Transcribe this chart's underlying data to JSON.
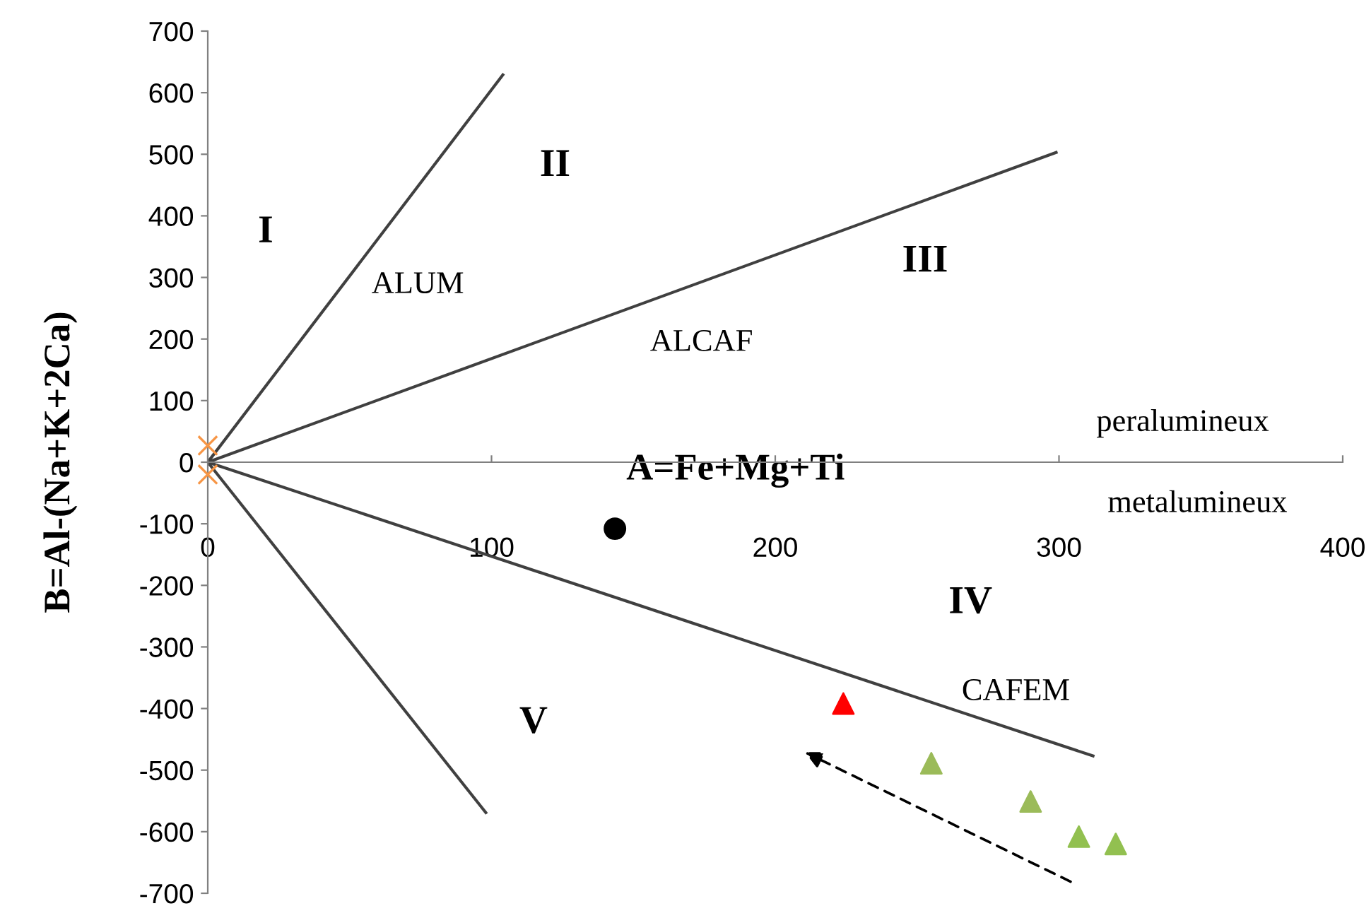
{
  "chart_data": {
    "type": "scatter",
    "ylabel": "B=Al-(Na+K+2Ca)",
    "xlabel": "A=Fe+Mg+Ti",
    "xlim": [
      0,
      400
    ],
    "ylim": [
      -700,
      700
    ],
    "xticks": [
      0,
      100,
      200,
      300,
      400
    ],
    "yticks": [
      -700,
      -600,
      -500,
      -400,
      -300,
      -200,
      -100,
      0,
      100,
      200,
      300,
      400,
      500,
      600,
      700
    ],
    "series": [
      {
        "type": "line",
        "color": "#404040",
        "x": [
          0,
          104
        ],
        "values": [
          0,
          629
        ],
        "marker": "none"
      },
      {
        "type": "line",
        "color": "#404040",
        "x": [
          0,
          299
        ],
        "values": [
          0,
          503
        ],
        "marker": "none"
      },
      {
        "type": "line",
        "color": "#404040",
        "x": [
          0,
          312
        ],
        "values": [
          0,
          -477
        ],
        "marker": "none"
      },
      {
        "type": "line",
        "color": "#404040",
        "x": [
          0,
          98
        ],
        "values": [
          0,
          -569
        ],
        "marker": "none"
      },
      {
        "type": "scatter",
        "color": "#000000",
        "x": [
          143.5
        ],
        "values": [
          -108
        ],
        "marker": "circle"
      },
      {
        "type": "scatter",
        "color": "#ff0000",
        "x": [
          224
        ],
        "values": [
          -392
        ],
        "marker": "triangle"
      },
      {
        "type": "scatter",
        "color": "#9bbb59",
        "x": [
          255,
          290
        ],
        "values": [
          -489,
          -551
        ],
        "marker": "triangle"
      },
      {
        "type": "scatter",
        "color": "#92c050",
        "x": [
          307,
          320
        ],
        "values": [
          -608,
          -620
        ],
        "marker": "triangle"
      },
      {
        "type": "scatter",
        "color": "#f79646",
        "x": [
          0,
          0
        ],
        "values": [
          27,
          -20
        ],
        "marker": "cross"
      }
    ],
    "annotations": [
      "I",
      "II",
      "III",
      "IV",
      "V",
      "ALUM",
      "ALCAF",
      "CAFEM",
      "peralumineux",
      "metalumineux"
    ]
  }
}
